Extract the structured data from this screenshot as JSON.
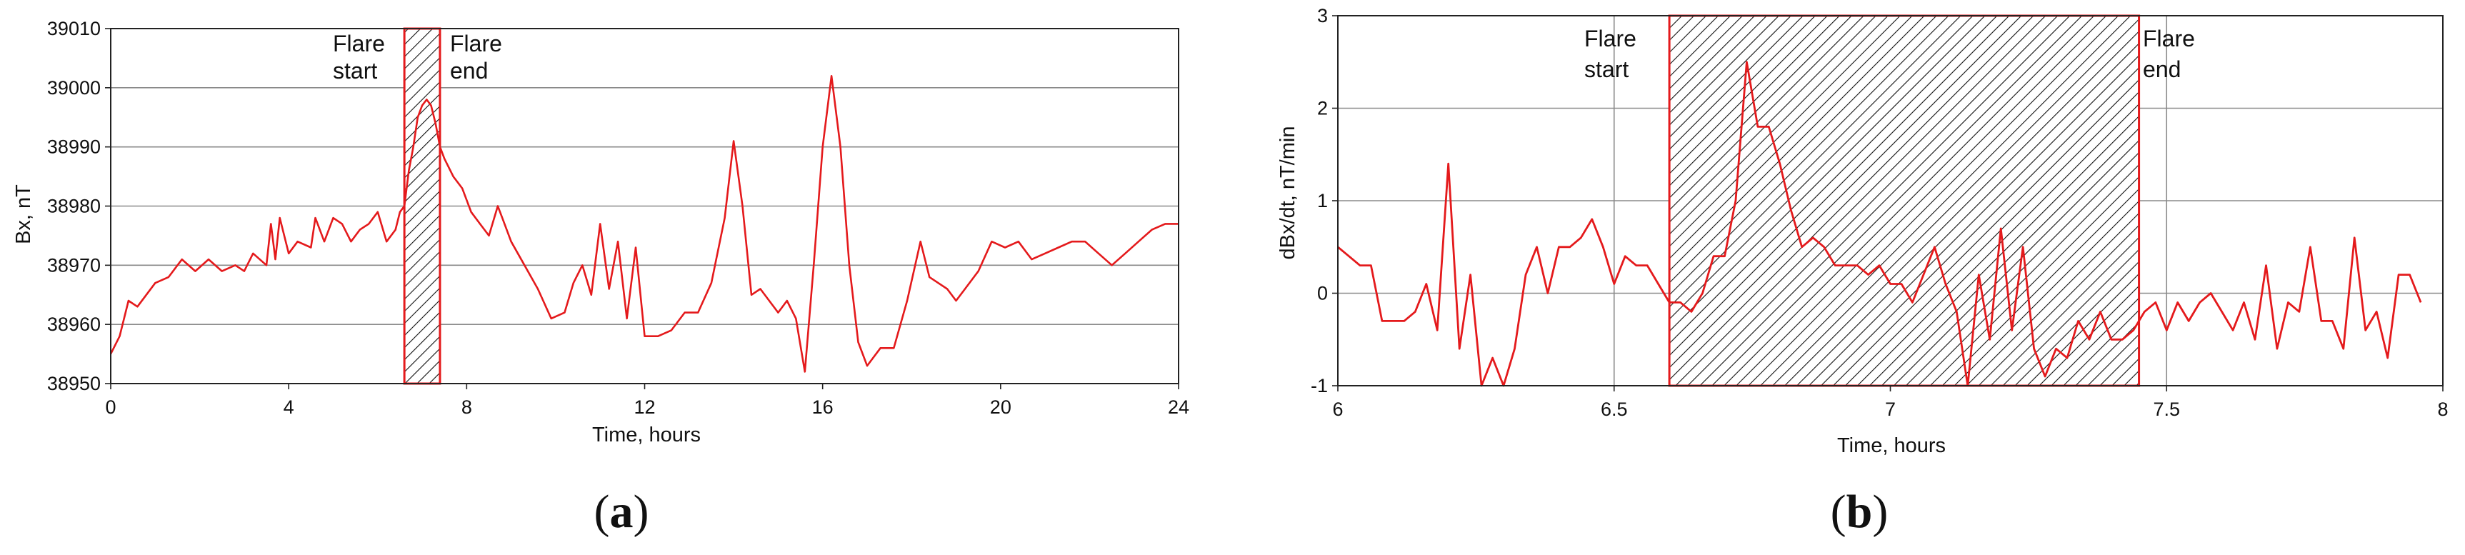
{
  "figure": {
    "panels": [
      {
        "label_open": "(",
        "label_letter": "a",
        "label_close": ")"
      },
      {
        "label_open": "(",
        "label_letter": "b",
        "label_close": ")"
      }
    ]
  },
  "chart_data": [
    {
      "type": "line",
      "title": "",
      "xlabel": "Time, hours",
      "ylabel": "Bx, nT",
      "xlim": [
        0,
        24
      ],
      "ylim": [
        38950,
        39010
      ],
      "xticks": [
        0,
        4,
        8,
        12,
        16,
        20,
        24
      ],
      "yticks": [
        38950,
        38960,
        38970,
        38980,
        38990,
        39000,
        39010
      ],
      "grid": "horizontal",
      "line_color": "#e41a1c",
      "annotations": [
        {
          "type": "shaded_region",
          "x_start": 6.6,
          "x_end": 7.4,
          "pattern": "diagonal-hatch",
          "edge_color": "#e41a1c"
        },
        {
          "type": "text",
          "lines": [
            "Flare",
            "start"
          ]
        },
        {
          "type": "text",
          "lines": [
            "Flare",
            "end"
          ]
        }
      ],
      "series": [
        {
          "x": [
            0,
            0.2,
            0.4,
            0.6,
            0.8,
            1.0,
            1.3,
            1.6,
            1.9,
            2.2,
            2.5,
            2.8,
            3.0,
            3.2,
            3.5,
            3.6,
            3.7,
            3.8,
            4.0,
            4.2,
            4.5,
            4.6,
            4.8,
            5.0,
            5.2,
            5.4,
            5.6,
            5.8,
            6.0,
            6.2,
            6.4,
            6.5,
            6.6,
            6.7,
            6.8,
            6.9,
            7.0,
            7.1,
            7.2,
            7.3,
            7.4,
            7.5,
            7.7,
            7.9,
            8.1,
            8.3,
            8.5,
            8.7,
            8.8,
            9.0,
            9.3,
            9.6,
            9.9,
            10.2,
            10.4,
            10.6,
            10.8,
            11.0,
            11.2,
            11.4,
            11.6,
            11.8,
            12.0,
            12.3,
            12.6,
            12.9,
            13.2,
            13.5,
            13.8,
            14.0,
            14.2,
            14.4,
            14.6,
            14.8,
            15.0,
            15.2,
            15.4,
            15.6,
            15.8,
            16.0,
            16.2,
            16.4,
            16.6,
            16.8,
            17.0,
            17.3,
            17.6,
            17.9,
            18.2,
            18.4,
            18.6,
            18.8,
            19.0,
            19.2,
            19.5,
            19.8,
            20.1,
            20.4,
            20.7,
            21.0,
            21.3,
            21.6,
            21.9,
            22.2,
            22.5,
            22.8,
            23.1,
            23.4,
            23.7,
            24.0
          ],
          "y": [
            38955,
            38958,
            38964,
            38963,
            38965,
            38967,
            38968,
            38971,
            38969,
            38971,
            38969,
            38970,
            38969,
            38972,
            38970,
            38977,
            38971,
            38978,
            38972,
            38974,
            38973,
            38978,
            38974,
            38978,
            38977,
            38974,
            38976,
            38977,
            38979,
            38974,
            38976,
            38979,
            38980,
            38986,
            38990,
            38995,
            38997,
            38998,
            38997,
            38994,
            38990,
            38988,
            38985,
            38983,
            38979,
            38977,
            38975,
            38980,
            38978,
            38974,
            38970,
            38966,
            38961,
            38962,
            38967,
            38970,
            38965,
            38977,
            38966,
            38974,
            38961,
            38973,
            38958,
            38958,
            38959,
            38962,
            38962,
            38967,
            38978,
            38991,
            38980,
            38965,
            38966,
            38964,
            38962,
            38964,
            38961,
            38952,
            38970,
            38990,
            39002,
            38990,
            38970,
            38957,
            38953,
            38956,
            38956,
            38964,
            38974,
            38968,
            38967,
            38966,
            38964,
            38966,
            38969,
            38974,
            38973,
            38974,
            38971,
            38972,
            38973,
            38974,
            38974,
            38972,
            38970,
            38972,
            38974,
            38976,
            38977,
            38977
          ]
        }
      ]
    },
    {
      "type": "line",
      "title": "",
      "xlabel": "Time, hours",
      "ylabel": "dBx/dt, nT/min",
      "xlim": [
        6,
        8
      ],
      "ylim": [
        -1,
        3
      ],
      "xticks": [
        6,
        6.5,
        7,
        7.5,
        8
      ],
      "yticks": [
        -1,
        0,
        1,
        2,
        3
      ],
      "grid": "both",
      "line_color": "#e41a1c",
      "annotations": [
        {
          "type": "shaded_region",
          "x_start": 6.6,
          "x_end": 7.45,
          "pattern": "diagonal-hatch",
          "edge_color": "#e41a1c"
        },
        {
          "type": "text",
          "lines": [
            "Flare",
            "start"
          ]
        },
        {
          "type": "text",
          "lines": [
            "Flare",
            "end"
          ]
        }
      ],
      "series": [
        {
          "x": [
            6.0,
            6.02,
            6.04,
            6.06,
            6.08,
            6.1,
            6.12,
            6.14,
            6.16,
            6.18,
            6.2,
            6.22,
            6.24,
            6.26,
            6.28,
            6.3,
            6.32,
            6.34,
            6.36,
            6.38,
            6.4,
            6.42,
            6.44,
            6.46,
            6.48,
            6.5,
            6.52,
            6.54,
            6.56,
            6.58,
            6.6,
            6.62,
            6.64,
            6.66,
            6.68,
            6.7,
            6.72,
            6.74,
            6.76,
            6.78,
            6.8,
            6.82,
            6.84,
            6.86,
            6.88,
            6.9,
            6.92,
            6.94,
            6.96,
            6.98,
            7.0,
            7.02,
            7.04,
            7.06,
            7.08,
            7.1,
            7.12,
            7.14,
            7.16,
            7.18,
            7.2,
            7.22,
            7.24,
            7.26,
            7.28,
            7.3,
            7.32,
            7.34,
            7.36,
            7.38,
            7.4,
            7.42,
            7.44,
            7.46,
            7.48,
            7.5,
            7.52,
            7.54,
            7.56,
            7.58,
            7.6,
            7.62,
            7.64,
            7.66,
            7.68,
            7.7,
            7.72,
            7.74,
            7.76,
            7.78,
            7.8,
            7.82,
            7.84,
            7.86,
            7.88,
            7.9,
            7.92,
            7.94,
            7.96
          ],
          "y": [
            0.5,
            0.4,
            0.3,
            0.3,
            -0.3,
            -0.3,
            -0.3,
            -0.2,
            0.1,
            -0.4,
            1.4,
            -0.6,
            0.2,
            -1.0,
            -0.7,
            -1.0,
            -0.6,
            0.2,
            0.5,
            0.0,
            0.5,
            0.5,
            0.6,
            0.8,
            0.5,
            0.1,
            0.4,
            0.3,
            0.3,
            0.1,
            -0.1,
            -0.1,
            -0.2,
            0.0,
            0.4,
            0.4,
            1.0,
            2.5,
            1.8,
            1.8,
            1.4,
            0.9,
            0.5,
            0.6,
            0.5,
            0.3,
            0.3,
            0.3,
            0.2,
            0.3,
            0.1,
            0.1,
            -0.1,
            0.2,
            0.5,
            0.1,
            -0.2,
            -1.0,
            0.2,
            -0.5,
            0.7,
            -0.4,
            0.5,
            -0.6,
            -0.9,
            -0.6,
            -0.7,
            -0.3,
            -0.5,
            -0.2,
            -0.5,
            -0.5,
            -0.4,
            -0.2,
            -0.1,
            -0.4,
            -0.1,
            -0.3,
            -0.1,
            0.0,
            -0.2,
            -0.4,
            -0.1,
            -0.5,
            0.3,
            -0.6,
            -0.1,
            -0.2,
            0.5,
            -0.3,
            -0.3,
            -0.6,
            0.6,
            -0.4,
            -0.2,
            -0.7,
            0.2,
            0.2,
            -0.1
          ]
        }
      ]
    }
  ]
}
